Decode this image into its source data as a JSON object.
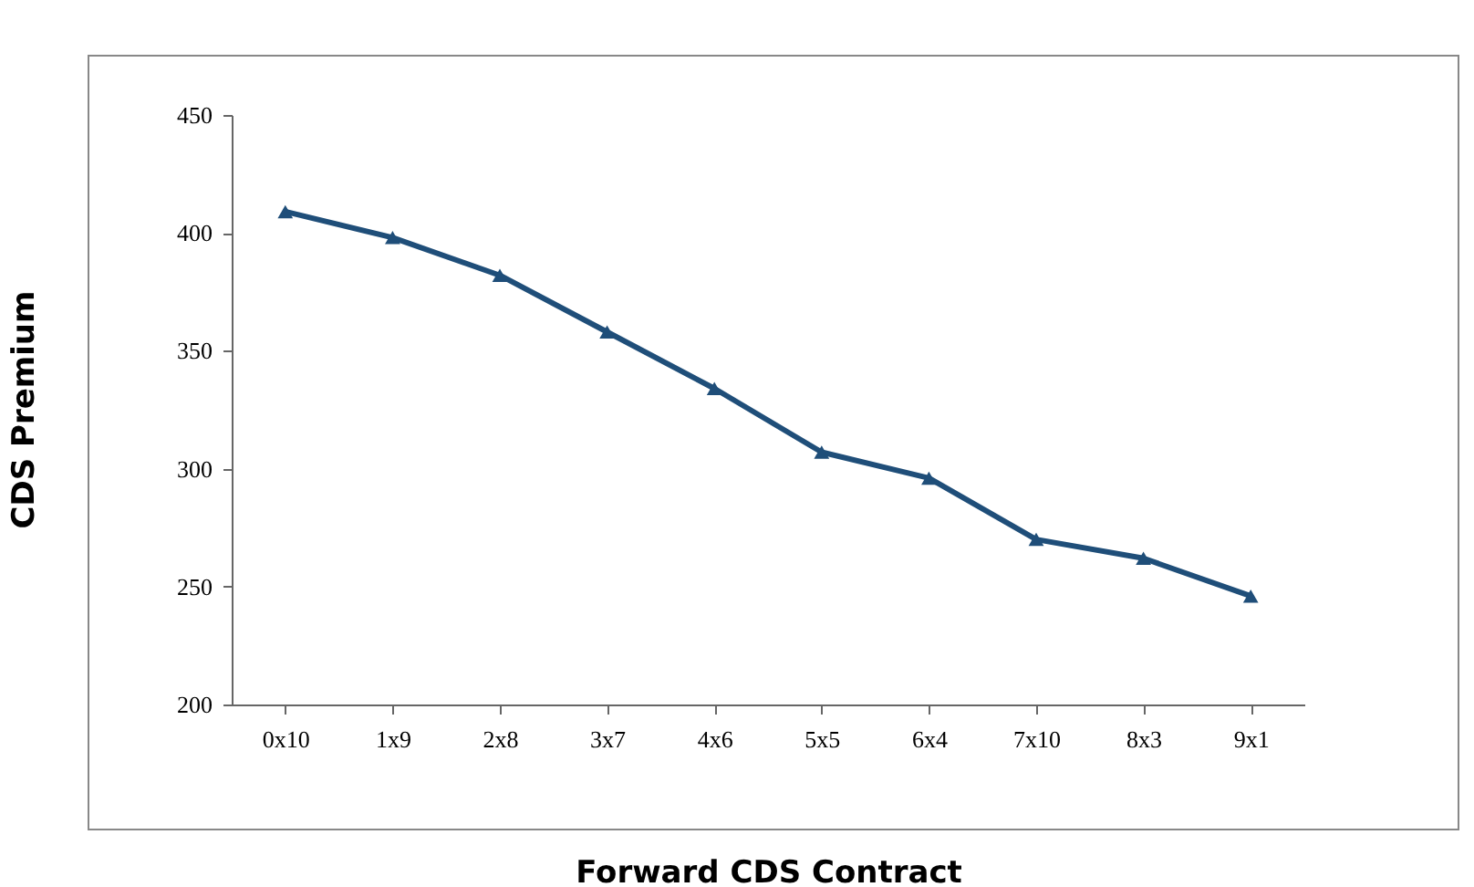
{
  "chart_data": {
    "type": "line",
    "xlabel": "Forward CDS Contract",
    "ylabel": "CDS Premium",
    "categories": [
      "0x10",
      "1x9",
      "2x8",
      "3x7",
      "4x6",
      "5x5",
      "6x4",
      "7x10",
      "8x3",
      "9x1"
    ],
    "series": [
      {
        "color": "#1f4e79",
        "values": [
          409,
          398,
          382,
          358,
          334,
          307,
          296,
          270,
          262,
          246
        ]
      }
    ],
    "ylim": [
      200,
      450
    ],
    "yticks": [
      200,
      250,
      300,
      350,
      400,
      450
    ],
    "grid": false,
    "marker": "triangle",
    "line_style": "solid"
  }
}
